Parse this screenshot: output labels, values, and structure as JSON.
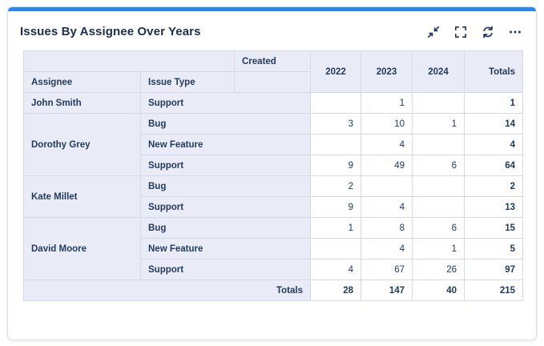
{
  "card": {
    "title": "Issues By Assignee Over Years",
    "toolbar": [
      {
        "name": "collapse-icon"
      },
      {
        "name": "fullscreen-icon"
      },
      {
        "name": "refresh-icon"
      },
      {
        "name": "more-icon"
      }
    ]
  },
  "colors": {
    "accent_bar": "#2684ff",
    "header_cell_bg": "#e9ecf6",
    "cell_border": "#d3d9ea",
    "text": "#223a5e"
  },
  "chart_data": {
    "type": "table",
    "title": "Issues By Assignee Over Years",
    "column_group_label": "Created",
    "row_header_labels": {
      "assignee": "Assignee",
      "issue_type": "Issue Type"
    },
    "year_columns": [
      "2022",
      "2023",
      "2024"
    ],
    "totals_column_label": "Totals",
    "rows": [
      {
        "assignee": "John Smith",
        "rowspan": 1,
        "issue_type": "Support",
        "values": [
          "",
          "1",
          ""
        ],
        "total": "1"
      },
      {
        "assignee": "Dorothy Grey",
        "rowspan": 3,
        "issue_type": "Bug",
        "values": [
          "3",
          "10",
          "1"
        ],
        "total": "14"
      },
      {
        "issue_type": "New Feature",
        "values": [
          "",
          "4",
          ""
        ],
        "total": "4"
      },
      {
        "issue_type": "Support",
        "values": [
          "9",
          "49",
          "6"
        ],
        "total": "64"
      },
      {
        "assignee": "Kate Millet",
        "rowspan": 2,
        "issue_type": "Bug",
        "values": [
          "2",
          "",
          ""
        ],
        "total": "2"
      },
      {
        "issue_type": "Support",
        "values": [
          "9",
          "4",
          ""
        ],
        "total": "13"
      },
      {
        "assignee": "David Moore",
        "rowspan": 3,
        "issue_type": "Bug",
        "values": [
          "1",
          "8",
          "6"
        ],
        "total": "15"
      },
      {
        "issue_type": "New Feature",
        "values": [
          "",
          "4",
          "1"
        ],
        "total": "5"
      },
      {
        "issue_type": "Support",
        "values": [
          "4",
          "67",
          "26"
        ],
        "total": "97"
      }
    ],
    "totals_row": {
      "label": "Totals",
      "values": [
        "28",
        "147",
        "40"
      ],
      "total": "215"
    }
  }
}
